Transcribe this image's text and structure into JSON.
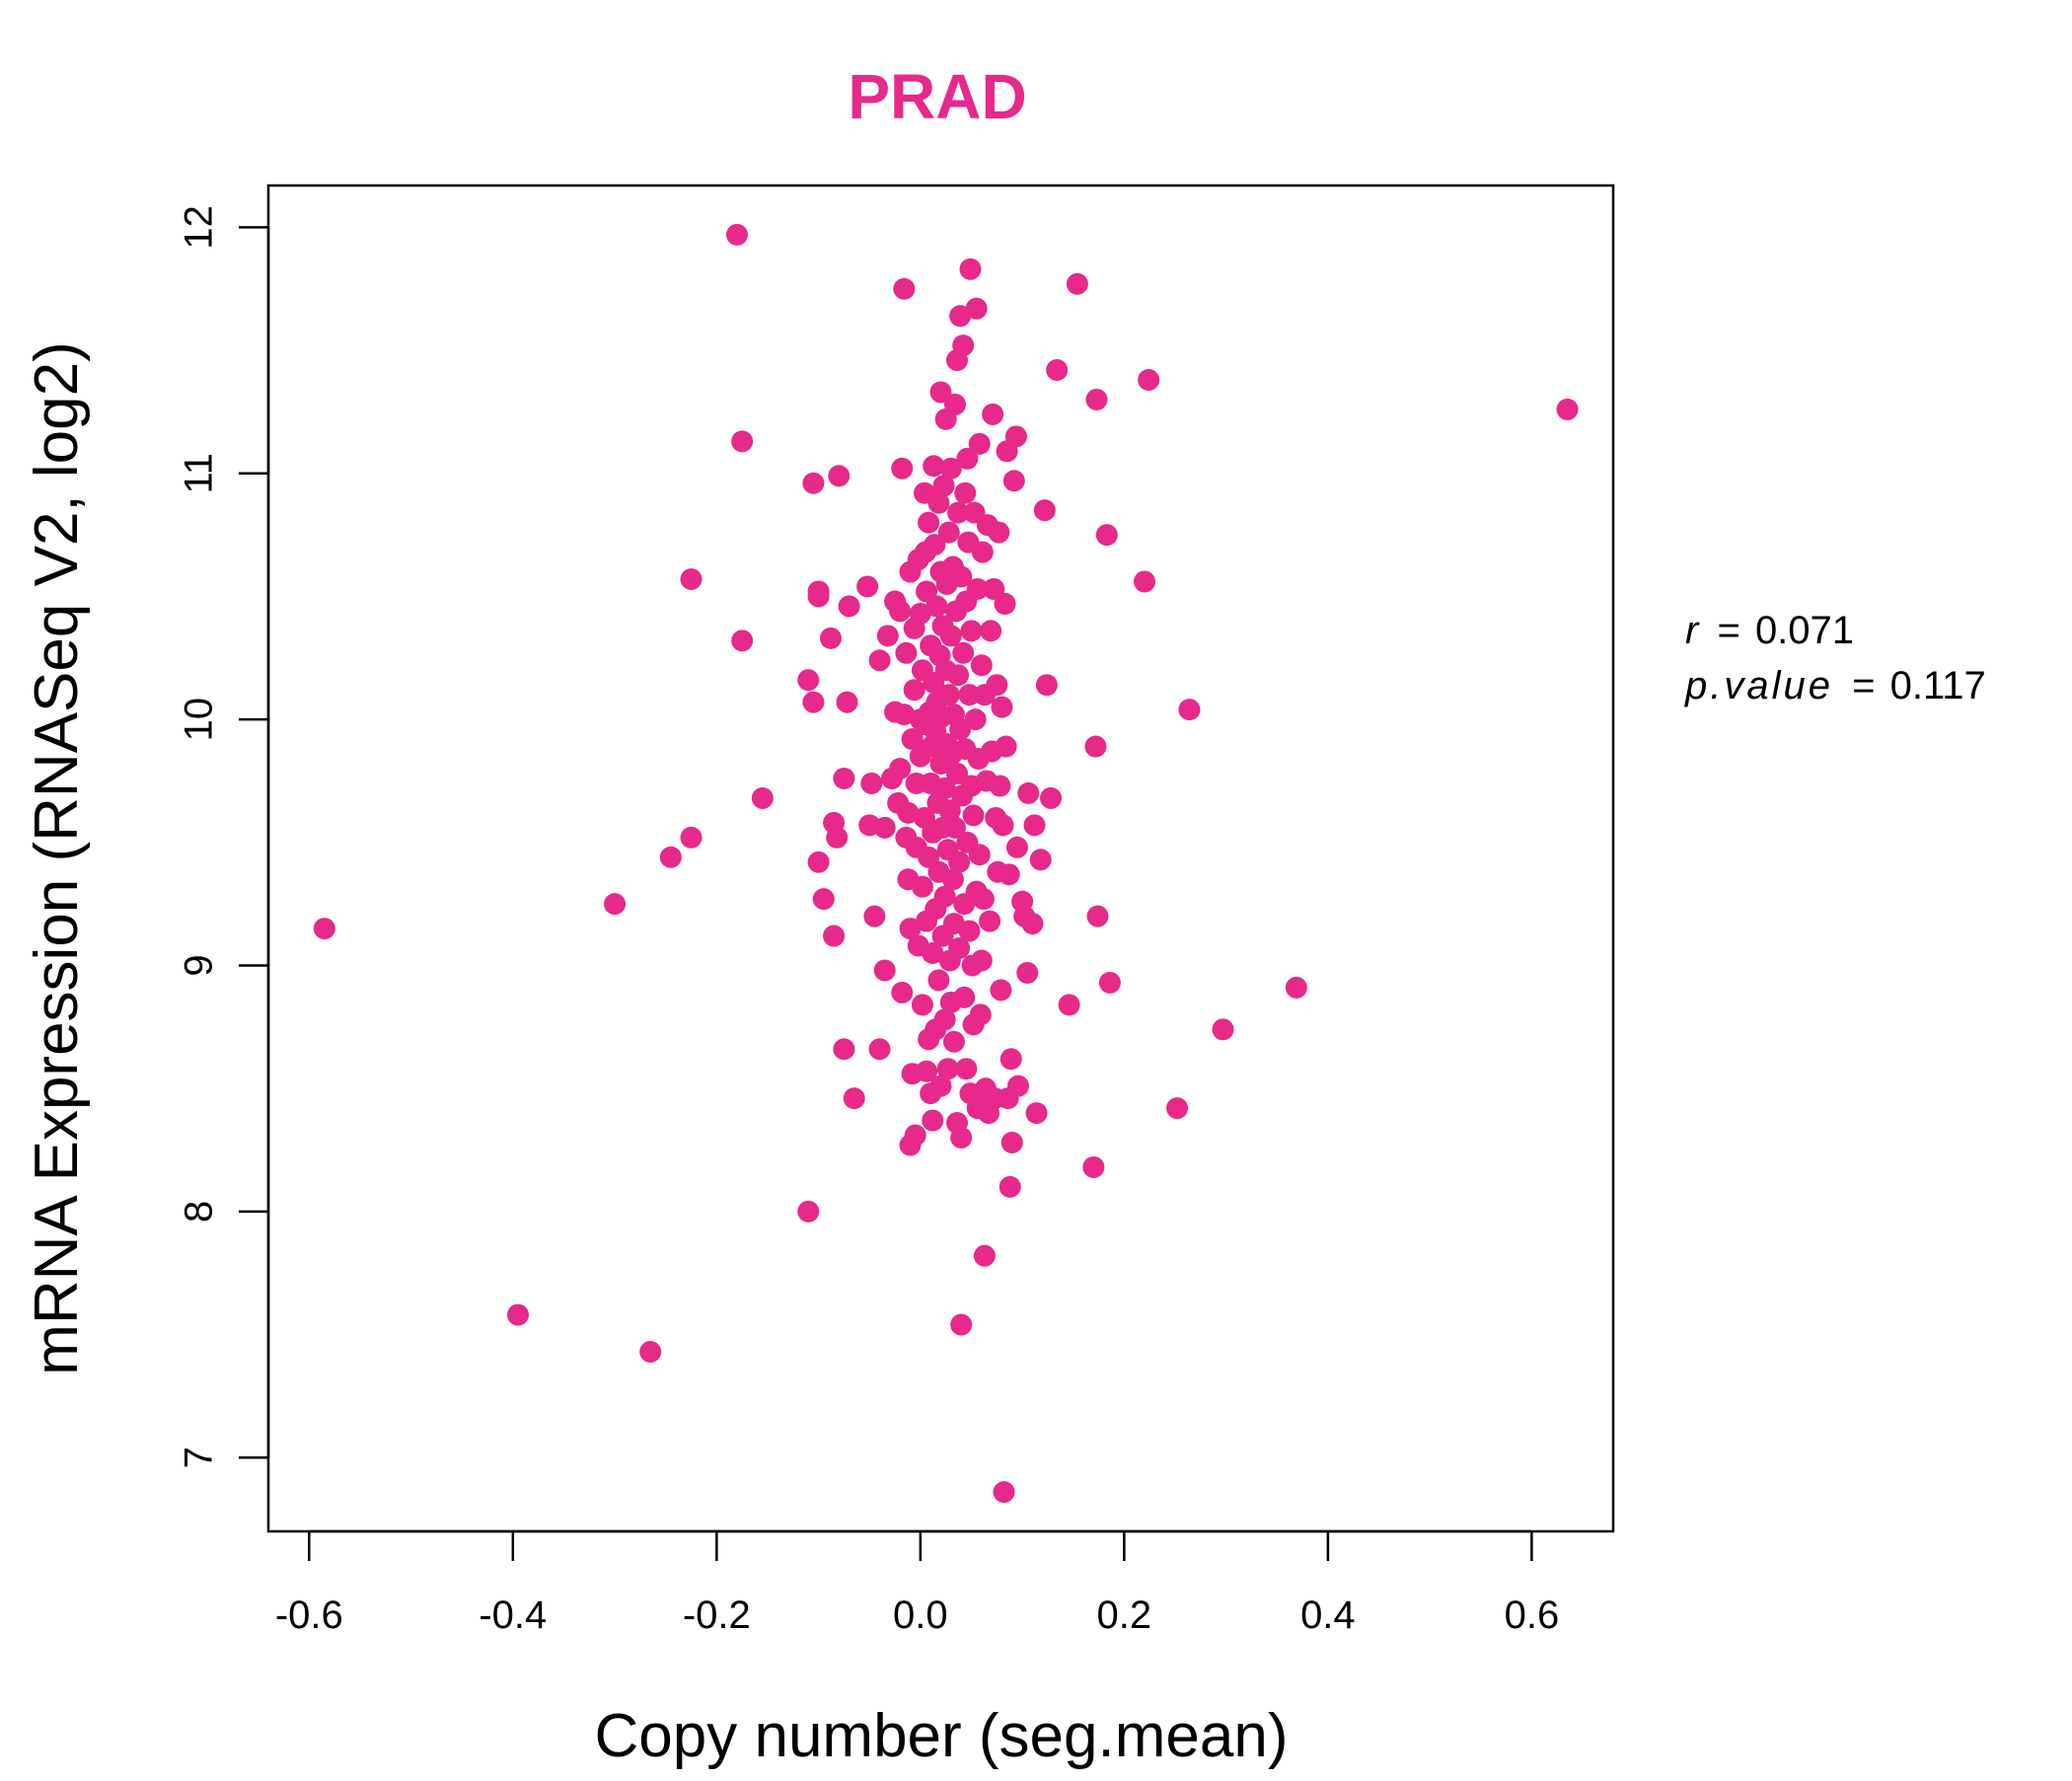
{
  "chart_data": {
    "type": "scatter",
    "title": "PRAD",
    "title_color": "#e6298a",
    "point_color": "#e6298a",
    "xlabel": "Copy number (seg.mean)",
    "ylabel": "mRNA Expression (RNASeq V2, log2)",
    "xlim": [
      -0.64,
      0.68
    ],
    "ylim": [
      6.7,
      12.17
    ],
    "x_ticks": [
      -0.6,
      -0.4,
      -0.2,
      0.0,
      0.2,
      0.4,
      0.6
    ],
    "x_tick_labels": [
      "-0.6",
      "-0.4",
      "-0.2",
      "0.0",
      "0.2",
      "0.4",
      "0.6"
    ],
    "y_ticks": [
      7,
      8,
      9,
      10,
      11,
      12
    ],
    "y_tick_labels": [
      "7",
      "8",
      "9",
      "10",
      "11",
      "12"
    ],
    "grid": false,
    "stats": {
      "r_label": "r",
      "r_value": "0.071",
      "p_label": "p.value",
      "p_value": "0.117",
      "equals": "="
    },
    "points": [
      [
        -0.585,
        9.15
      ],
      [
        -0.395,
        7.58
      ],
      [
        -0.3,
        9.25
      ],
      [
        -0.265,
        7.43
      ],
      [
        -0.245,
        9.44
      ],
      [
        -0.225,
        9.52
      ],
      [
        -0.225,
        10.57
      ],
      [
        -0.18,
        11.97
      ],
      [
        -0.175,
        11.13
      ],
      [
        -0.175,
        10.32
      ],
      [
        -0.155,
        9.68
      ],
      [
        -0.11,
        8.0
      ],
      [
        -0.11,
        10.16
      ],
      [
        -0.105,
        10.07
      ],
      [
        -0.105,
        10.96
      ],
      [
        -0.1,
        10.5
      ],
      [
        -0.1,
        9.42
      ],
      [
        -0.1,
        10.52
      ],
      [
        -0.095,
        9.27
      ],
      [
        -0.088,
        10.33
      ],
      [
        -0.085,
        9.58
      ],
      [
        -0.085,
        9.12
      ],
      [
        -0.082,
        9.52
      ],
      [
        -0.08,
        10.99
      ],
      [
        -0.075,
        8.66
      ],
      [
        -0.075,
        9.76
      ],
      [
        -0.072,
        10.07
      ],
      [
        -0.07,
        10.46
      ],
      [
        -0.065,
        8.46
      ],
      [
        -0.052,
        10.54
      ],
      [
        -0.05,
        9.57
      ],
      [
        -0.048,
        9.74
      ],
      [
        -0.045,
        9.2
      ],
      [
        -0.04,
        8.66
      ],
      [
        -0.04,
        10.24
      ],
      [
        -0.035,
        8.98
      ],
      [
        -0.035,
        9.56
      ],
      [
        -0.032,
        10.34
      ],
      [
        -0.028,
        9.76
      ],
      [
        -0.025,
        10.03
      ],
      [
        -0.025,
        10.48
      ],
      [
        -0.022,
        9.66
      ],
      [
        -0.02,
        10.44
      ],
      [
        -0.02,
        9.8
      ],
      [
        -0.018,
        8.89
      ],
      [
        -0.018,
        11.02
      ],
      [
        -0.016,
        10.02
      ],
      [
        -0.016,
        11.75
      ],
      [
        -0.014,
        9.52
      ],
      [
        -0.014,
        10.27
      ],
      [
        -0.012,
        9.35
      ],
      [
        -0.012,
        9.62
      ],
      [
        -0.01,
        8.27
      ],
      [
        -0.01,
        9.15
      ],
      [
        -0.01,
        10.6
      ],
      [
        -0.008,
        8.56
      ],
      [
        -0.008,
        9.92
      ],
      [
        -0.006,
        10.12
      ],
      [
        -0.006,
        10.37
      ],
      [
        -0.005,
        8.31
      ],
      [
        -0.004,
        9.48
      ],
      [
        -0.004,
        9.74
      ],
      [
        -0.002,
        10.65
      ],
      [
        -0.002,
        9.08
      ],
      [
        0.0,
        10.0
      ],
      [
        0.0,
        9.85
      ],
      [
        0.0,
        10.43
      ],
      [
        0.002,
        8.84
      ],
      [
        0.002,
        9.32
      ],
      [
        0.002,
        10.2
      ],
      [
        0.004,
        10.92
      ],
      [
        0.004,
        9.6
      ],
      [
        0.004,
        9.98
      ],
      [
        0.005,
        10.68
      ],
      [
        0.006,
        8.57
      ],
      [
        0.006,
        9.18
      ],
      [
        0.006,
        10.52
      ],
      [
        0.008,
        8.7
      ],
      [
        0.008,
        9.44
      ],
      [
        0.008,
        10.8
      ],
      [
        0.009,
        10.03
      ],
      [
        0.01,
        8.48
      ],
      [
        0.01,
        9.74
      ],
      [
        0.01,
        10.3
      ],
      [
        0.011,
        9.89
      ],
      [
        0.012,
        8.37
      ],
      [
        0.012,
        9.05
      ],
      [
        0.012,
        9.54
      ],
      [
        0.013,
        11.03
      ],
      [
        0.013,
        10.15
      ],
      [
        0.014,
        10.71
      ],
      [
        0.015,
        8.74
      ],
      [
        0.015,
        9.23
      ],
      [
        0.015,
        9.95
      ],
      [
        0.016,
        10.46
      ],
      [
        0.016,
        10.07
      ],
      [
        0.017,
        9.66
      ],
      [
        0.018,
        8.94
      ],
      [
        0.018,
        9.38
      ],
      [
        0.018,
        10.88
      ],
      [
        0.019,
        10.26
      ],
      [
        0.02,
        8.51
      ],
      [
        0.02,
        9.82
      ],
      [
        0.02,
        10.6
      ],
      [
        0.02,
        11.33
      ],
      [
        0.021,
        10.01
      ],
      [
        0.022,
        9.12
      ],
      [
        0.022,
        9.56
      ],
      [
        0.022,
        10.38
      ],
      [
        0.023,
        10.95
      ],
      [
        0.024,
        8.78
      ],
      [
        0.024,
        9.28
      ],
      [
        0.024,
        9.72
      ],
      [
        0.025,
        10.2
      ],
      [
        0.025,
        11.22
      ],
      [
        0.026,
        10.55
      ],
      [
        0.026,
        9.9
      ],
      [
        0.027,
        8.58
      ],
      [
        0.027,
        9.47
      ],
      [
        0.028,
        10.76
      ],
      [
        0.028,
        10.1
      ],
      [
        0.029,
        9.02
      ],
      [
        0.029,
        9.63
      ],
      [
        0.03,
        8.85
      ],
      [
        0.03,
        10.34
      ],
      [
        0.03,
        11.02
      ],
      [
        0.031,
        9.86
      ],
      [
        0.032,
        9.35
      ],
      [
        0.032,
        10.62
      ],
      [
        0.033,
        8.69
      ],
      [
        0.033,
        9.17
      ],
      [
        0.033,
        10.02
      ],
      [
        0.034,
        11.28
      ],
      [
        0.034,
        9.56
      ],
      [
        0.035,
        10.44
      ],
      [
        0.036,
        8.36
      ],
      [
        0.036,
        9.78
      ],
      [
        0.036,
        11.46
      ],
      [
        0.037,
        10.84
      ],
      [
        0.037,
        10.18
      ],
      [
        0.038,
        9.07
      ],
      [
        0.038,
        9.42
      ],
      [
        0.039,
        11.64
      ],
      [
        0.039,
        9.96
      ],
      [
        0.04,
        8.3
      ],
      [
        0.04,
        10.58
      ],
      [
        0.04,
        7.54
      ],
      [
        0.041,
        9.69
      ],
      [
        0.042,
        11.52
      ],
      [
        0.042,
        10.27
      ],
      [
        0.043,
        8.87
      ],
      [
        0.043,
        9.25
      ],
      [
        0.044,
        10.92
      ],
      [
        0.044,
        9.88
      ],
      [
        0.045,
        8.58
      ],
      [
        0.045,
        10.48
      ],
      [
        0.046,
        9.5
      ],
      [
        0.046,
        11.06
      ],
      [
        0.047,
        10.72
      ],
      [
        0.048,
        9.14
      ],
      [
        0.048,
        10.1
      ],
      [
        0.049,
        11.83
      ],
      [
        0.049,
        8.48
      ],
      [
        0.05,
        9.73
      ],
      [
        0.05,
        10.36
      ],
      [
        0.051,
        9.0
      ],
      [
        0.052,
        8.76
      ],
      [
        0.052,
        9.61
      ],
      [
        0.053,
        10.84
      ],
      [
        0.054,
        10.0
      ],
      [
        0.055,
        9.3
      ],
      [
        0.055,
        11.67
      ],
      [
        0.056,
        8.42
      ],
      [
        0.056,
        10.53
      ],
      [
        0.057,
        9.84
      ],
      [
        0.058,
        11.12
      ],
      [
        0.058,
        9.45
      ],
      [
        0.059,
        8.8
      ],
      [
        0.06,
        10.22
      ],
      [
        0.06,
        9.02
      ],
      [
        0.061,
        10.68
      ],
      [
        0.062,
        9.27
      ],
      [
        0.063,
        7.82
      ],
      [
        0.063,
        10.1
      ],
      [
        0.064,
        8.5
      ],
      [
        0.065,
        9.75
      ],
      [
        0.066,
        10.79
      ],
      [
        0.067,
        8.4
      ],
      [
        0.068,
        9.18
      ],
      [
        0.069,
        10.36
      ],
      [
        0.07,
        9.87
      ],
      [
        0.071,
        11.24
      ],
      [
        0.072,
        10.53
      ],
      [
        0.073,
        8.46
      ],
      [
        0.074,
        9.6
      ],
      [
        0.075,
        10.14
      ],
      [
        0.076,
        9.38
      ],
      [
        0.077,
        10.76
      ],
      [
        0.078,
        9.73
      ],
      [
        0.079,
        8.9
      ],
      [
        0.08,
        10.05
      ],
      [
        0.081,
        9.57
      ],
      [
        0.082,
        6.86
      ],
      [
        0.083,
        10.47
      ],
      [
        0.084,
        9.89
      ],
      [
        0.085,
        11.09
      ],
      [
        0.086,
        8.46
      ],
      [
        0.087,
        9.37
      ],
      [
        0.088,
        8.1
      ],
      [
        0.089,
        8.62
      ],
      [
        0.09,
        8.28
      ],
      [
        0.092,
        10.97
      ],
      [
        0.094,
        11.15
      ],
      [
        0.095,
        9.48
      ],
      [
        0.096,
        8.51
      ],
      [
        0.1,
        9.26
      ],
      [
        0.102,
        9.2
      ],
      [
        0.105,
        8.97
      ],
      [
        0.106,
        9.7
      ],
      [
        0.11,
        9.17
      ],
      [
        0.112,
        9.57
      ],
      [
        0.114,
        8.4
      ],
      [
        0.118,
        9.43
      ],
      [
        0.122,
        10.85
      ],
      [
        0.124,
        10.14
      ],
      [
        0.128,
        9.68
      ],
      [
        0.134,
        11.42
      ],
      [
        0.146,
        8.84
      ],
      [
        0.154,
        11.77
      ],
      [
        0.17,
        8.18
      ],
      [
        0.172,
        9.89
      ],
      [
        0.173,
        11.3
      ],
      [
        0.174,
        9.2
      ],
      [
        0.183,
        10.75
      ],
      [
        0.186,
        8.93
      ],
      [
        0.22,
        10.56
      ],
      [
        0.224,
        11.38
      ],
      [
        0.252,
        8.42
      ],
      [
        0.264,
        10.04
      ],
      [
        0.297,
        8.74
      ],
      [
        0.369,
        8.91
      ],
      [
        0.635,
        11.26
      ]
    ]
  }
}
